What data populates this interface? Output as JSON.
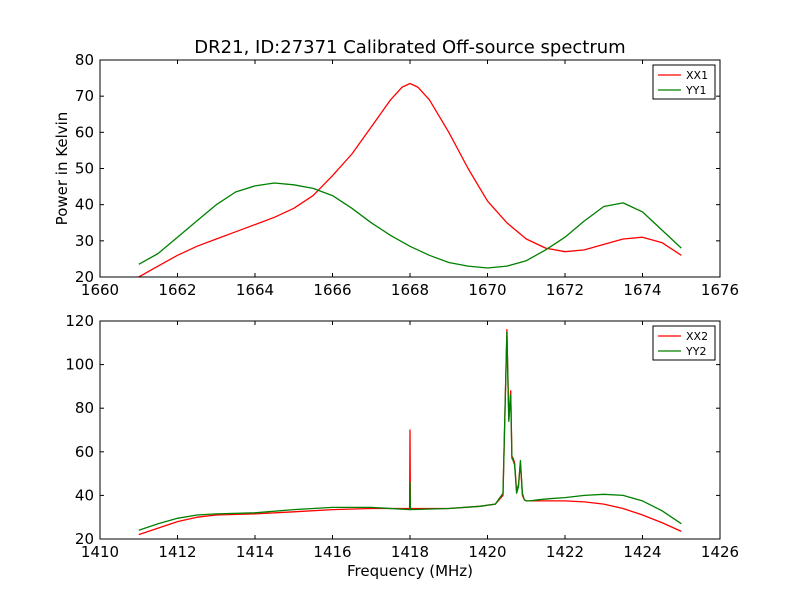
{
  "title": "DR21, ID:27371 Calibrated Off-source spectrum",
  "chart_data": [
    {
      "type": "line",
      "title": "DR21, ID:27371 Calibrated Off-source spectrum",
      "xlabel": "",
      "ylabel": "Power in Kelvin",
      "xlim": [
        1660,
        1676
      ],
      "ylim": [
        20,
        80
      ],
      "xticks": [
        1660,
        1662,
        1664,
        1666,
        1668,
        1670,
        1672,
        1674,
        1676
      ],
      "yticks": [
        20,
        30,
        40,
        50,
        60,
        70,
        80
      ],
      "legend_position": "top-right",
      "series": [
        {
          "name": "XX1",
          "color": "#ff0000",
          "x": [
            1661.0,
            1661.5,
            1662.0,
            1662.5,
            1663.0,
            1663.5,
            1664.0,
            1664.5,
            1665.0,
            1665.5,
            1666.0,
            1666.5,
            1667.0,
            1667.5,
            1667.8,
            1668.0,
            1668.2,
            1668.5,
            1669.0,
            1669.5,
            1670.0,
            1670.5,
            1671.0,
            1671.5,
            1672.0,
            1672.5,
            1673.0,
            1673.5,
            1674.0,
            1674.5,
            1675.0
          ],
          "y": [
            20,
            23,
            26,
            28.5,
            30.5,
            32.5,
            34.5,
            36.5,
            39,
            42.5,
            48,
            54,
            61.5,
            69,
            72.5,
            73.5,
            72.5,
            69,
            60,
            50,
            41,
            35,
            30.5,
            28,
            27,
            27.5,
            29,
            30.5,
            31,
            29.5,
            26
          ]
        },
        {
          "name": "YY1",
          "color": "#008000",
          "x": [
            1661.0,
            1661.5,
            1662.0,
            1662.5,
            1663.0,
            1663.5,
            1664.0,
            1664.5,
            1665.0,
            1665.5,
            1666.0,
            1666.5,
            1667.0,
            1667.5,
            1668.0,
            1668.5,
            1669.0,
            1669.5,
            1670.0,
            1670.5,
            1671.0,
            1671.5,
            1672.0,
            1672.5,
            1673.0,
            1673.5,
            1674.0,
            1674.5,
            1675.0
          ],
          "y": [
            23.5,
            26.5,
            31,
            35.5,
            40,
            43.5,
            45.2,
            46,
            45.5,
            44.5,
            42.5,
            39,
            35,
            31.5,
            28.5,
            26,
            24,
            23,
            22.5,
            23,
            24.5,
            27.5,
            31,
            35.5,
            39.5,
            40.5,
            38,
            33,
            28
          ]
        }
      ]
    },
    {
      "type": "line",
      "title": "",
      "xlabel": "Frequency (MHz)",
      "ylabel": "",
      "xlim": [
        1410,
        1426
      ],
      "ylim": [
        20,
        120
      ],
      "xticks": [
        1410,
        1412,
        1414,
        1416,
        1418,
        1420,
        1422,
        1424,
        1426
      ],
      "yticks": [
        20,
        40,
        60,
        80,
        100,
        120
      ],
      "legend_position": "top-right",
      "series": [
        {
          "name": "XX2",
          "color": "#ff0000",
          "x": [
            1411.0,
            1411.5,
            1412.0,
            1412.5,
            1413.0,
            1414.0,
            1415.0,
            1416.0,
            1417.0,
            1417.99,
            1418.0,
            1418.01,
            1419.0,
            1419.8,
            1420.2,
            1420.4,
            1420.5,
            1420.55,
            1420.6,
            1420.63,
            1420.66,
            1420.7,
            1420.75,
            1420.8,
            1420.85,
            1420.9,
            1420.95,
            1421.0,
            1421.1,
            1421.3,
            1421.6,
            1422.0,
            1422.5,
            1423.0,
            1423.5,
            1424.0,
            1424.5,
            1425.0
          ],
          "y": [
            22,
            25,
            28,
            30,
            31,
            31.5,
            32.5,
            33.5,
            34,
            34,
            70,
            34,
            34,
            35,
            36,
            40,
            116,
            75,
            88,
            58,
            57,
            55,
            42,
            45,
            55,
            40,
            38,
            37.5,
            37.5,
            37.5,
            37.5,
            37.5,
            37,
            36,
            34,
            31,
            27.5,
            23.5
          ]
        },
        {
          "name": "YY2",
          "color": "#008000",
          "x": [
            1411.0,
            1411.5,
            1412.0,
            1412.5,
            1413.0,
            1414.0,
            1415.0,
            1416.0,
            1417.0,
            1417.99,
            1418.0,
            1418.01,
            1419.0,
            1419.8,
            1420.2,
            1420.4,
            1420.5,
            1420.55,
            1420.6,
            1420.63,
            1420.66,
            1420.7,
            1420.75,
            1420.8,
            1420.85,
            1420.9,
            1420.95,
            1421.0,
            1421.1,
            1421.3,
            1421.6,
            1422.0,
            1422.5,
            1423.0,
            1423.5,
            1424.0,
            1424.5,
            1425.0
          ],
          "y": [
            24,
            27,
            29.5,
            31,
            31.5,
            32,
            33.5,
            34.5,
            34.5,
            33.5,
            46,
            33.5,
            34,
            35,
            36,
            41,
            115,
            74,
            86,
            57,
            56,
            54,
            41,
            44,
            56,
            41,
            38,
            37.5,
            37.5,
            38,
            38.5,
            39,
            40,
            40.5,
            40,
            37.5,
            33,
            27
          ]
        }
      ]
    }
  ]
}
